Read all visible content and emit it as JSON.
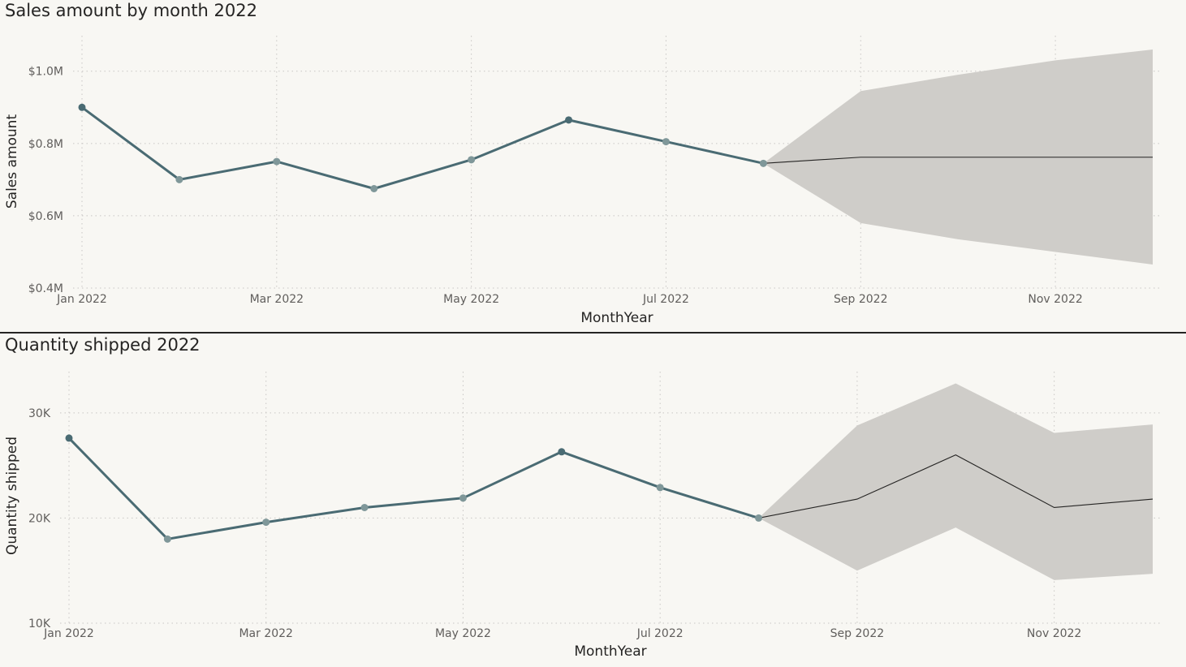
{
  "colors": {
    "background": "#f8f7f3",
    "series_line": "#4a6b73",
    "marker_dark": "#4a6b73",
    "marker_light": "#7f9799",
    "forecast_line": "#252423",
    "forecast_band": "#cfcdc9"
  },
  "chart_data": [
    {
      "type": "line",
      "title": "Sales amount by month 2022",
      "xlabel": "MonthYear",
      "ylabel": "Sales amount",
      "ylim": [
        0.4,
        1.06
      ],
      "yticks": [
        0.4,
        0.6,
        0.8,
        1.0
      ],
      "ytick_labels": [
        "$0.4M",
        "$0.6M",
        "$0.8M",
        "$1.0M"
      ],
      "unit": "$M",
      "xticks": [
        1,
        3,
        5,
        7,
        9,
        11
      ],
      "xtick_labels": [
        "Jan 2022",
        "Mar 2022",
        "May 2022",
        "Jul 2022",
        "Sep 2022",
        "Nov 2022"
      ],
      "grid": true,
      "series": [
        {
          "months": [
            1,
            2,
            3,
            4,
            5,
            6,
            7,
            8
          ],
          "values": [
            0.9,
            0.7,
            0.75,
            0.675,
            0.755,
            0.865,
            0.805,
            0.745
          ],
          "marker_dark": [
            true,
            false,
            false,
            false,
            false,
            true,
            false,
            false
          ]
        }
      ],
      "forecast": {
        "months": [
          8,
          9,
          10,
          11,
          12
        ],
        "values": [
          0.745,
          0.762,
          0.762,
          0.762,
          0.762
        ],
        "upper": [
          0.745,
          0.945,
          0.99,
          1.03,
          1.06
        ],
        "lower": [
          0.745,
          0.58,
          0.535,
          0.5,
          0.465
        ]
      }
    },
    {
      "type": "line",
      "title": "Quantity shipped 2022",
      "xlabel": "MonthYear",
      "ylabel": "Quantity shipped",
      "ylim": [
        10000,
        34000
      ],
      "yticks": [
        10000,
        20000,
        30000
      ],
      "ytick_labels": [
        "10K",
        "20K",
        "30K"
      ],
      "xticks": [
        1,
        3,
        5,
        7,
        9,
        11
      ],
      "xtick_labels": [
        "Jan 2022",
        "Mar 2022",
        "May 2022",
        "Jul 2022",
        "Sep 2022",
        "Nov 2022"
      ],
      "grid": true,
      "series": [
        {
          "months": [
            1,
            2,
            3,
            4,
            5,
            6,
            7,
            8
          ],
          "values": [
            27600,
            18000,
            19600,
            21000,
            21900,
            26300,
            22900,
            20000
          ],
          "marker_dark": [
            true,
            false,
            false,
            false,
            false,
            true,
            false,
            false
          ]
        }
      ],
      "forecast": {
        "months": [
          8,
          9,
          10,
          11,
          12
        ],
        "values": [
          20000,
          21800,
          26000,
          21000,
          21800
        ],
        "upper": [
          20000,
          28800,
          32800,
          28100,
          28900
        ],
        "lower": [
          20000,
          15000,
          19100,
          14100,
          14700
        ]
      }
    }
  ]
}
